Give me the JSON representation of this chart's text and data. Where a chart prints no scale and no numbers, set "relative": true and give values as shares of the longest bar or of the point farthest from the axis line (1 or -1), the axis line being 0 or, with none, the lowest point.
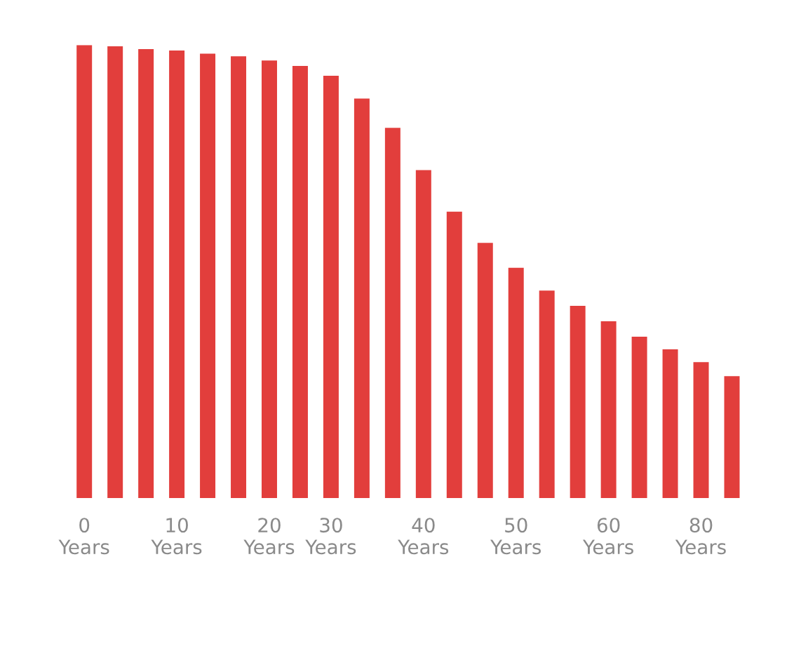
{
  "chart_data": {
    "type": "bar",
    "relative": true,
    "categories": [
      "0\nYears",
      null,
      null,
      "10\nYears",
      null,
      null,
      "20\nYears",
      null,
      "30\nYears",
      null,
      null,
      "40\nYears",
      null,
      null,
      "50\nYears",
      null,
      null,
      "60\nYears",
      null,
      null,
      "80\nYears",
      null
    ],
    "color": "#e23e3c",
    "values": [
      1,
      0.997,
      0.991,
      0.988,
      0.981,
      0.975,
      0.966,
      0.954,
      0.932,
      0.882,
      0.817,
      0.724,
      0.632,
      0.563,
      0.508,
      0.458,
      0.424,
      0.39,
      0.356,
      0.328,
      0.3,
      0.269
    ],
    "grid": false,
    "legend": false
  }
}
